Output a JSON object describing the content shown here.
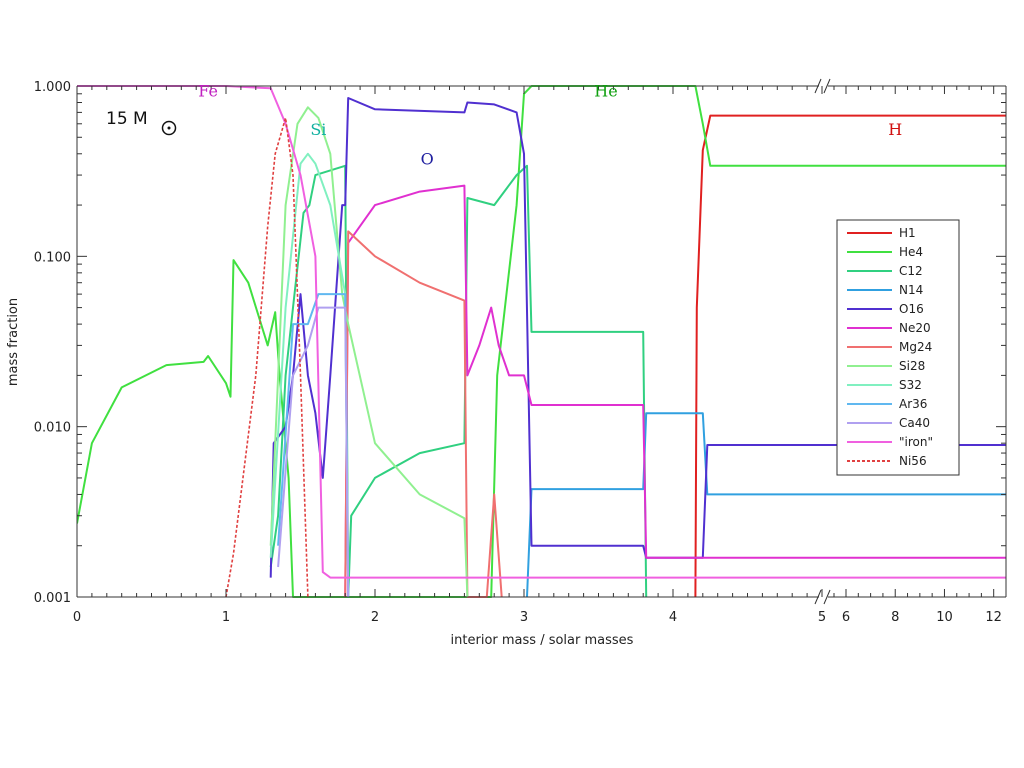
{
  "chart_data": {
    "type": "line",
    "title": "",
    "xlabel": "interior mass / solar masses",
    "ylabel": "mass fraction",
    "ylim": [
      0.001,
      1.0
    ],
    "yscale": "log",
    "xscale": "broken: linear 0-5, then 5-12.5 compressed",
    "grid": false,
    "legend_position": "right",
    "annotations": {
      "star": "15 M",
      "regions": [
        {
          "text": "Fe",
          "color": "#c020c0",
          "x": 0.88,
          "y": 0.93
        },
        {
          "text": "Si",
          "color": "#10b0a0",
          "x": 1.62,
          "y": 0.55
        },
        {
          "text": "O",
          "color": "#2020a0",
          "x": 2.35,
          "y": 0.37
        },
        {
          "text": "He",
          "color": "#10a010",
          "x": 3.55,
          "y": 0.93
        },
        {
          "text": "H",
          "color": "#d01010",
          "x": 8.0,
          "y": 0.55
        }
      ]
    },
    "x_ticks": [
      {
        "v": 0,
        "label": "0"
      },
      {
        "v": 1,
        "label": "1"
      },
      {
        "v": 2,
        "label": "2"
      },
      {
        "v": 3,
        "label": "3"
      },
      {
        "v": 4,
        "label": "4"
      },
      {
        "v": 5,
        "label": "5"
      },
      {
        "v": 6,
        "label": "6"
      },
      {
        "v": 8,
        "label": "8"
      },
      {
        "v": 10,
        "label": "10"
      },
      {
        "v": 12,
        "label": "12"
      }
    ],
    "y_ticks": [
      {
        "v": 1.0,
        "label": "1.000"
      },
      {
        "v": 0.1,
        "label": "0.100"
      },
      {
        "v": 0.01,
        "label": "0.010"
      },
      {
        "v": 0.001,
        "label": "0.001"
      }
    ],
    "series": [
      {
        "name": "H1",
        "color": "#e02020",
        "dash": false,
        "points": [
          [
            4.15,
            0.001
          ],
          [
            4.16,
            0.05
          ],
          [
            4.2,
            0.42
          ],
          [
            4.25,
            0.67
          ],
          [
            7,
            0.67
          ],
          [
            12.5,
            0.67
          ]
        ]
      },
      {
        "name": "He4",
        "color": "#40e040",
        "dash": false,
        "points": [
          [
            0,
            0.0027
          ],
          [
            0.1,
            0.008
          ],
          [
            0.3,
            0.017
          ],
          [
            0.6,
            0.023
          ],
          [
            0.85,
            0.024
          ],
          [
            0.88,
            0.026
          ],
          [
            1.0,
            0.018
          ],
          [
            1.03,
            0.015
          ],
          [
            1.05,
            0.095
          ],
          [
            1.15,
            0.07
          ],
          [
            1.28,
            0.03
          ],
          [
            1.33,
            0.047
          ],
          [
            1.36,
            0.02
          ],
          [
            1.42,
            0.005
          ],
          [
            1.45,
            0.001
          ],
          [
            2.78,
            0.001
          ],
          [
            2.82,
            0.02
          ],
          [
            2.95,
            0.2
          ],
          [
            3.0,
            0.9
          ],
          [
            3.05,
            1.0
          ],
          [
            4.15,
            1.0
          ],
          [
            4.2,
            0.6
          ],
          [
            4.25,
            0.34
          ],
          [
            12.5,
            0.34
          ]
        ]
      },
      {
        "name": "C12",
        "color": "#30d080",
        "dash": false,
        "points": [
          [
            1.3,
            0.0015
          ],
          [
            1.35,
            0.003
          ],
          [
            1.4,
            0.02
          ],
          [
            1.45,
            0.05
          ],
          [
            1.52,
            0.18
          ],
          [
            1.56,
            0.2
          ],
          [
            1.6,
            0.3
          ],
          [
            1.8,
            0.34
          ],
          [
            1.82,
            0.001
          ],
          [
            1.84,
            0.003
          ],
          [
            2.0,
            0.005
          ],
          [
            2.3,
            0.007
          ],
          [
            2.6,
            0.008
          ],
          [
            2.62,
            0.22
          ],
          [
            2.8,
            0.2
          ],
          [
            2.95,
            0.3
          ],
          [
            3.02,
            0.34
          ],
          [
            3.05,
            0.036
          ],
          [
            3.8,
            0.036
          ],
          [
            3.82,
            0.001
          ]
        ]
      },
      {
        "name": "N14",
        "color": "#30a0e0",
        "dash": false,
        "points": [
          [
            3.02,
            0.001
          ],
          [
            3.05,
            0.0043
          ],
          [
            3.8,
            0.0043
          ],
          [
            3.82,
            0.012
          ],
          [
            4.2,
            0.012
          ],
          [
            4.23,
            0.004
          ],
          [
            12.5,
            0.004
          ]
        ]
      },
      {
        "name": "O16",
        "color": "#5030d0",
        "dash": false,
        "points": [
          [
            1.3,
            0.0013
          ],
          [
            1.32,
            0.008
          ],
          [
            1.4,
            0.01
          ],
          [
            1.45,
            0.02
          ],
          [
            1.5,
            0.06
          ],
          [
            1.55,
            0.02
          ],
          [
            1.6,
            0.012
          ],
          [
            1.65,
            0.005
          ],
          [
            1.7,
            0.02
          ],
          [
            1.78,
            0.2
          ],
          [
            1.8,
            0.2
          ],
          [
            1.82,
            0.85
          ],
          [
            2.0,
            0.73
          ],
          [
            2.6,
            0.7
          ],
          [
            2.62,
            0.8
          ],
          [
            2.8,
            0.78
          ],
          [
            2.95,
            0.7
          ],
          [
            3.0,
            0.4
          ],
          [
            3.05,
            0.002
          ],
          [
            3.8,
            0.002
          ],
          [
            3.82,
            0.0017
          ],
          [
            4.2,
            0.0017
          ],
          [
            4.23,
            0.0078
          ],
          [
            12.5,
            0.0078
          ]
        ]
      },
      {
        "name": "Ne20",
        "color": "#e030d0",
        "dash": false,
        "points": [
          [
            1.8,
            0.001
          ],
          [
            1.82,
            0.12
          ],
          [
            2.0,
            0.2
          ],
          [
            2.3,
            0.24
          ],
          [
            2.6,
            0.26
          ],
          [
            2.62,
            0.02
          ],
          [
            2.7,
            0.03
          ],
          [
            2.78,
            0.05
          ],
          [
            2.83,
            0.03
          ],
          [
            2.9,
            0.02
          ],
          [
            3.0,
            0.02
          ],
          [
            3.05,
            0.0134
          ],
          [
            3.8,
            0.0134
          ],
          [
            3.82,
            0.0017
          ],
          [
            12.5,
            0.0017
          ]
        ]
      },
      {
        "name": "Mg24",
        "color": "#f07070",
        "dash": false,
        "points": [
          [
            1.8,
            0.001
          ],
          [
            1.82,
            0.14
          ],
          [
            2.0,
            0.1
          ],
          [
            2.3,
            0.07
          ],
          [
            2.6,
            0.055
          ],
          [
            2.62,
            0.001
          ],
          [
            2.75,
            0.001
          ],
          [
            2.8,
            0.004
          ],
          [
            2.85,
            0.001
          ]
        ]
      },
      {
        "name": "Si28",
        "color": "#90f090",
        "dash": false,
        "points": [
          [
            1.3,
            0.002
          ],
          [
            1.4,
            0.2
          ],
          [
            1.48,
            0.6
          ],
          [
            1.55,
            0.75
          ],
          [
            1.62,
            0.65
          ],
          [
            1.7,
            0.4
          ],
          [
            1.78,
            0.06
          ],
          [
            1.82,
            0.04
          ],
          [
            2.0,
            0.008
          ],
          [
            2.3,
            0.004
          ],
          [
            2.6,
            0.0029
          ],
          [
            2.62,
            0.001
          ]
        ]
      },
      {
        "name": "S32",
        "color": "#80f0c0",
        "dash": false,
        "points": [
          [
            1.3,
            0.0017
          ],
          [
            1.4,
            0.05
          ],
          [
            1.5,
            0.35
          ],
          [
            1.55,
            0.4
          ],
          [
            1.6,
            0.35
          ],
          [
            1.7,
            0.2
          ],
          [
            1.8,
            0.06
          ],
          [
            1.82,
            0.001
          ]
        ]
      },
      {
        "name": "Ar36",
        "color": "#60b8f0",
        "dash": false,
        "points": [
          [
            1.35,
            0.002
          ],
          [
            1.45,
            0.04
          ],
          [
            1.55,
            0.04
          ],
          [
            1.62,
            0.06
          ],
          [
            1.8,
            0.06
          ],
          [
            1.82,
            0.001
          ]
        ]
      },
      {
        "name": "Ca40",
        "color": "#b0a0f0",
        "dash": false,
        "points": [
          [
            1.35,
            0.0015
          ],
          [
            1.45,
            0.02
          ],
          [
            1.55,
            0.03
          ],
          [
            1.62,
            0.05
          ],
          [
            1.8,
            0.05
          ],
          [
            1.82,
            0.001
          ]
        ]
      },
      {
        "name": "\"iron\"",
        "color": "#f060e0",
        "dash": false,
        "points": [
          [
            0,
            1.0
          ],
          [
            1.0,
            1.0
          ],
          [
            1.3,
            0.97
          ],
          [
            1.4,
            0.6
          ],
          [
            1.5,
            0.3
          ],
          [
            1.6,
            0.1
          ],
          [
            1.65,
            0.0014
          ],
          [
            1.7,
            0.0013
          ],
          [
            12.5,
            0.0013
          ]
        ]
      },
      {
        "name": "Ni56",
        "color": "#e04040",
        "dash": true,
        "points": [
          [
            1.0,
            0.001
          ],
          [
            1.05,
            0.0018
          ],
          [
            1.1,
            0.004
          ],
          [
            1.2,
            0.02
          ],
          [
            1.28,
            0.15
          ],
          [
            1.33,
            0.4
          ],
          [
            1.4,
            0.65
          ],
          [
            1.45,
            0.3
          ],
          [
            1.5,
            0.02
          ],
          [
            1.55,
            0.001
          ]
        ]
      }
    ]
  }
}
